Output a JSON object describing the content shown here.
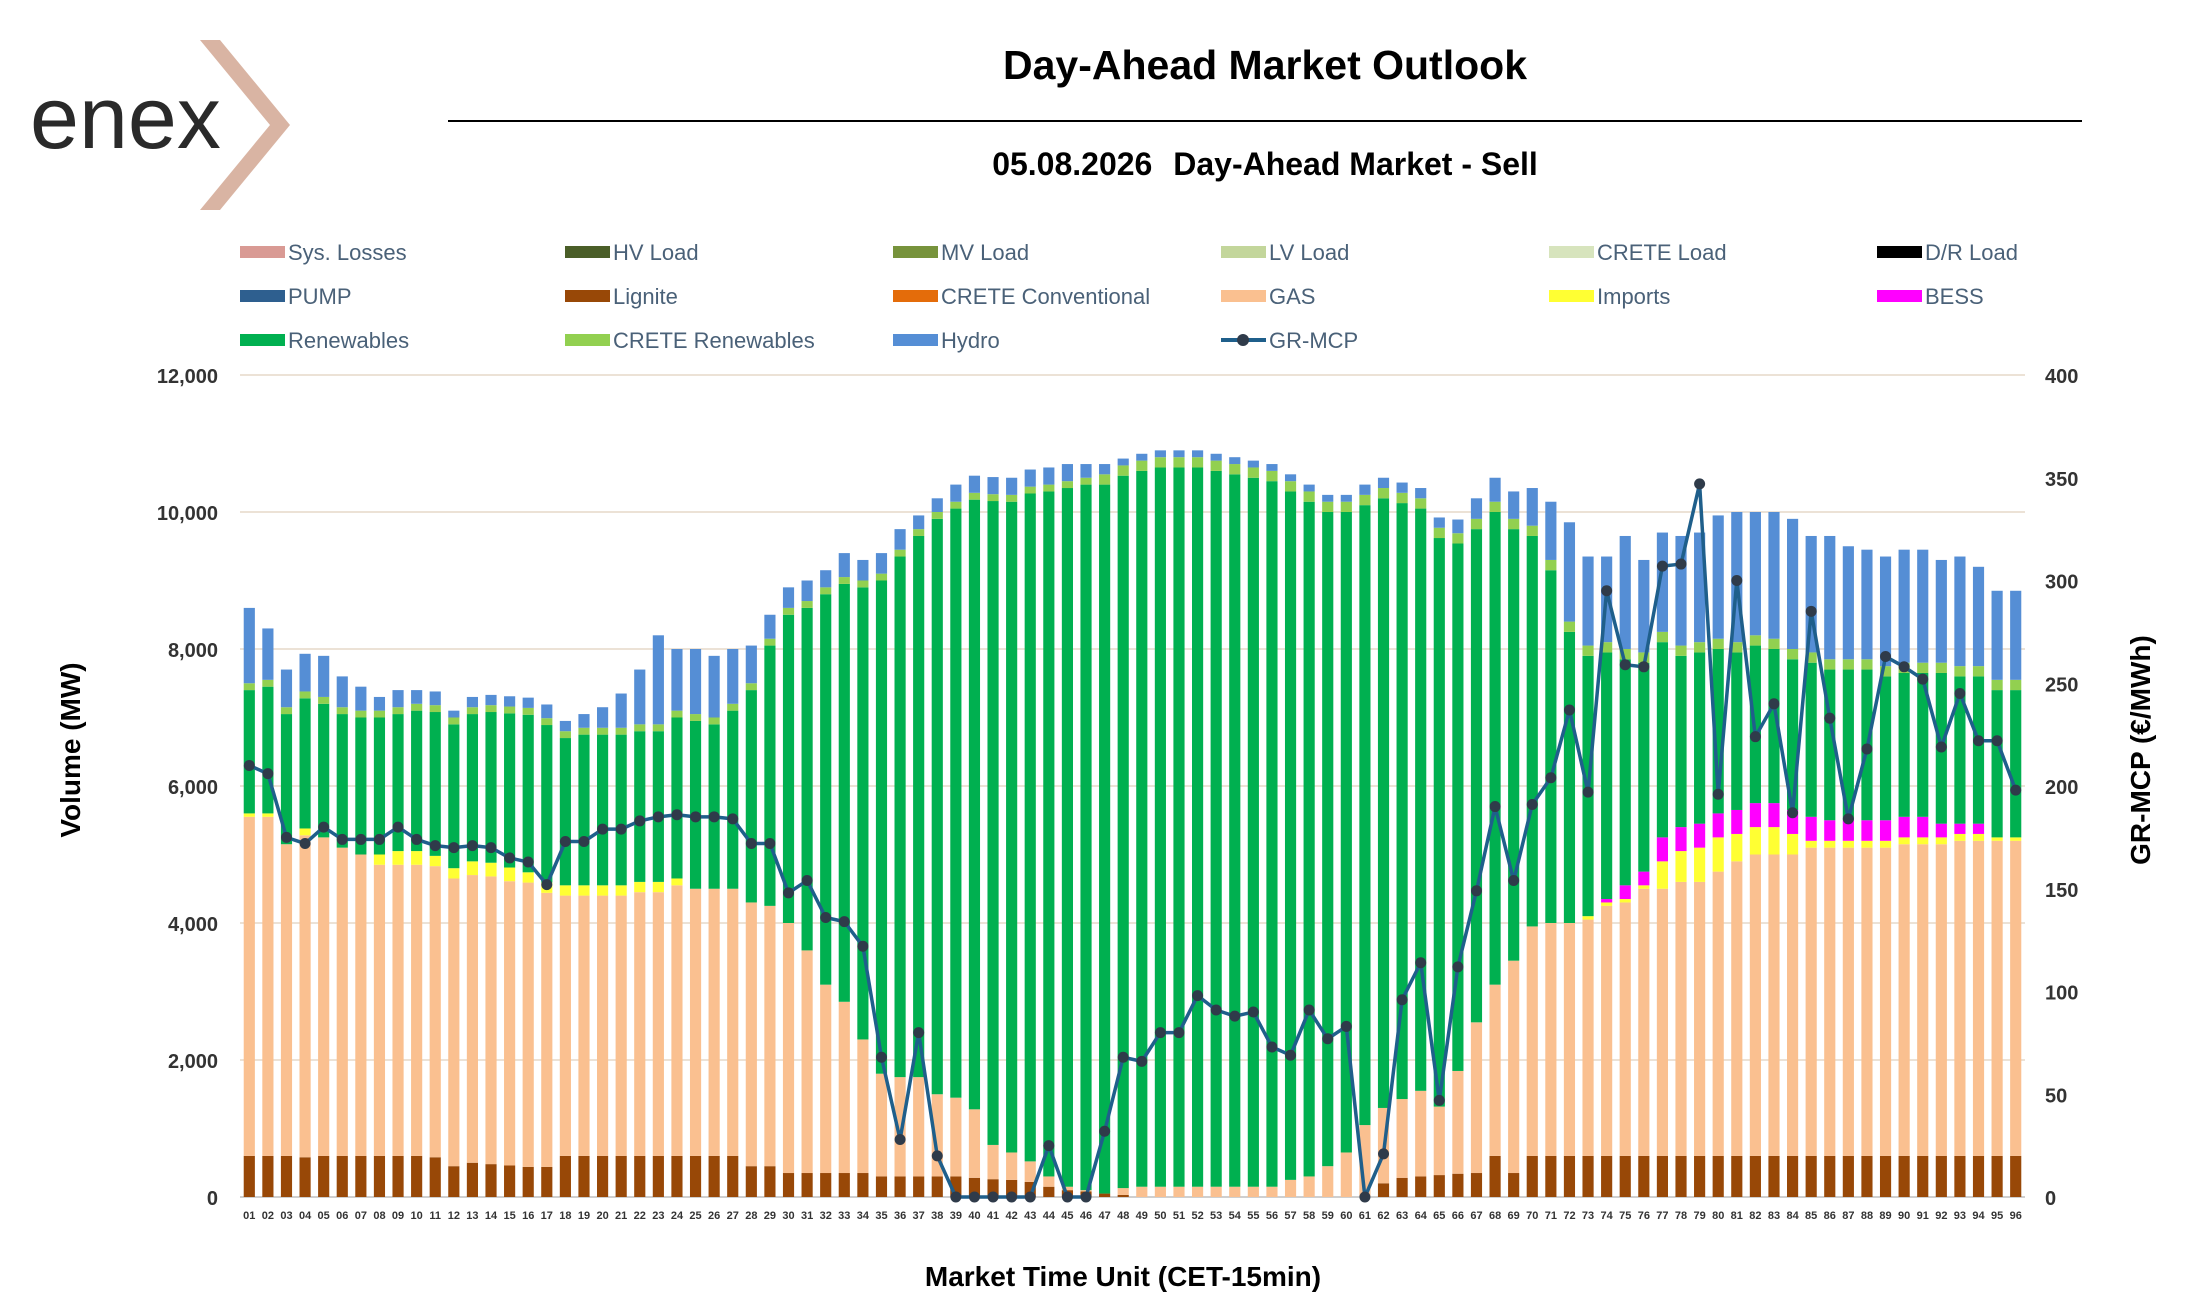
{
  "header": {
    "title": "Day-Ahead Market Outlook",
    "date": "05.08.2026",
    "market": "Day-Ahead Market - Sell"
  },
  "brand": {
    "logo_text": "enex",
    "chevron_color": "#d9b4a3",
    "text_color": "#2a2a2a"
  },
  "chart_data": {
    "type": "bar",
    "stacked": true,
    "xlabel": "Market Time Unit (CET-15min)",
    "ylabel": "Volume (MW)",
    "y2label": "GR-MCP (€/MWh)",
    "ylim": [
      0,
      12000
    ],
    "y2lim": [
      0,
      400
    ],
    "yticks": [
      "0",
      "2,000",
      "4,000",
      "6,000",
      "8,000",
      "10,000",
      "12,000"
    ],
    "y2ticks": [
      "0",
      "50",
      "100",
      "150",
      "200",
      "250",
      "300",
      "350",
      "400"
    ],
    "grid": true,
    "legend_position": "top",
    "legend": [
      {
        "name": "Sys. Losses",
        "color": "#d99a94",
        "type": "bar"
      },
      {
        "name": "HV Load",
        "color": "#4a5e28",
        "type": "bar"
      },
      {
        "name": "MV Load",
        "color": "#77933c",
        "type": "bar"
      },
      {
        "name": "LV Load",
        "color": "#c3d69b",
        "type": "bar"
      },
      {
        "name": "CRETE Load",
        "color": "#d7e4bd",
        "type": "bar"
      },
      {
        "name": "D/R Load",
        "color": "#000000",
        "type": "bar"
      },
      {
        "name": "PUMP",
        "color": "#2e5f8f",
        "type": "bar"
      },
      {
        "name": "Lignite",
        "color": "#984807",
        "type": "bar"
      },
      {
        "name": "CRETE Conventional",
        "color": "#e46c0a",
        "type": "bar"
      },
      {
        "name": "GAS",
        "color": "#fac090",
        "type": "bar"
      },
      {
        "name": "Imports",
        "color": "#ffff33",
        "type": "bar"
      },
      {
        "name": "BESS",
        "color": "#ff00ff",
        "type": "bar"
      },
      {
        "name": "Renewables",
        "color": "#00b050",
        "type": "bar"
      },
      {
        "name": "CRETE Renewables",
        "color": "#92d050",
        "type": "bar"
      },
      {
        "name": "Hydro",
        "color": "#558ed5",
        "type": "bar"
      },
      {
        "name": "GR-MCP",
        "color": "#1f5f8b",
        "type": "line"
      }
    ],
    "categories": [
      "01",
      "02",
      "03",
      "04",
      "05",
      "06",
      "07",
      "08",
      "09",
      "10",
      "11",
      "12",
      "13",
      "14",
      "15",
      "16",
      "17",
      "18",
      "19",
      "20",
      "21",
      "22",
      "23",
      "24",
      "25",
      "26",
      "27",
      "28",
      "29",
      "30",
      "31",
      "32",
      "33",
      "34",
      "35",
      "36",
      "37",
      "38",
      "39",
      "40",
      "41",
      "42",
      "43",
      "44",
      "45",
      "46",
      "47",
      "48",
      "49",
      "50",
      "51",
      "52",
      "53",
      "54",
      "55",
      "56",
      "57",
      "58",
      "59",
      "60",
      "61",
      "62",
      "63",
      "64",
      "65",
      "66",
      "67",
      "68",
      "69",
      "70",
      "71",
      "72",
      "73",
      "74",
      "75",
      "76",
      "77",
      "78",
      "79",
      "80",
      "81",
      "82",
      "83",
      "84",
      "85",
      "86",
      "87",
      "88",
      "89",
      "90",
      "91",
      "92",
      "93",
      "94",
      "95",
      "96"
    ],
    "series": [
      {
        "name": "Lignite",
        "color": "#984807",
        "values": [
          600,
          600,
          600,
          580,
          600,
          600,
          600,
          600,
          600,
          600,
          580,
          450,
          500,
          480,
          460,
          440,
          440,
          600,
          600,
          600,
          600,
          600,
          600,
          600,
          600,
          600,
          600,
          450,
          450,
          350,
          350,
          350,
          350,
          350,
          300,
          300,
          300,
          300,
          300,
          280,
          260,
          250,
          220,
          150,
          100,
          80,
          50,
          30,
          0,
          0,
          0,
          0,
          0,
          0,
          0,
          0,
          0,
          0,
          0,
          0,
          0,
          200,
          280,
          300,
          320,
          340,
          350,
          600,
          350,
          600,
          600,
          600,
          600,
          600,
          600,
          600,
          600,
          600,
          600,
          600,
          600,
          600,
          600,
          600,
          600,
          600,
          600,
          600,
          600,
          600,
          600,
          600,
          600,
          600,
          600,
          600
        ]
      },
      {
        "name": "GAS",
        "color": "#fac090",
        "values": [
          4950,
          4950,
          4550,
          4700,
          4650,
          4500,
          4400,
          4250,
          4250,
          4250,
          4250,
          4200,
          4200,
          4200,
          4150,
          4150,
          4000,
          3800,
          3800,
          3800,
          3800,
          3850,
          3850,
          3950,
          3900,
          3900,
          3900,
          3850,
          3800,
          3650,
          3250,
          2750,
          2500,
          1950,
          1500,
          1450,
          1450,
          1200,
          1150,
          1000,
          500,
          400,
          300,
          150,
          50,
          20,
          0,
          100,
          150,
          150,
          150,
          150,
          150,
          150,
          150,
          150,
          250,
          300,
          450,
          650,
          1050,
          1100,
          1150,
          1250,
          1000,
          1500,
          2200,
          2500,
          3100,
          3350,
          3400,
          3400,
          3450,
          3650,
          3700,
          3900,
          3900,
          4000,
          4000,
          4150,
          4300,
          4400,
          4400,
          4400,
          4500,
          4500,
          4500,
          4500,
          4500,
          4550,
          4550,
          4550,
          4600,
          4600,
          4600,
          4600
        ]
      },
      {
        "name": "Imports",
        "color": "#ffff33",
        "values": [
          50,
          50,
          0,
          100,
          0,
          0,
          0,
          150,
          200,
          200,
          150,
          150,
          200,
          200,
          200,
          150,
          150,
          150,
          150,
          150,
          150,
          150,
          150,
          100,
          0,
          0,
          0,
          0,
          0,
          0,
          0,
          0,
          0,
          0,
          0,
          0,
          0,
          0,
          0,
          0,
          0,
          0,
          0,
          0,
          0,
          0,
          0,
          0,
          0,
          0,
          0,
          0,
          0,
          0,
          0,
          0,
          0,
          0,
          0,
          0,
          0,
          0,
          0,
          0,
          0,
          0,
          0,
          0,
          0,
          0,
          0,
          0,
          50,
          50,
          50,
          50,
          400,
          450,
          500,
          500,
          400,
          400,
          400,
          300,
          100,
          100,
          100,
          100,
          100,
          100,
          100,
          100,
          100,
          100,
          50,
          50
        ]
      },
      {
        "name": "BESS",
        "color": "#ff00ff",
        "values": [
          0,
          0,
          0,
          0,
          0,
          0,
          0,
          0,
          0,
          0,
          0,
          0,
          0,
          0,
          0,
          0,
          0,
          0,
          0,
          0,
          0,
          0,
          0,
          0,
          0,
          0,
          0,
          0,
          0,
          0,
          0,
          0,
          0,
          0,
          0,
          0,
          0,
          0,
          0,
          0,
          0,
          0,
          0,
          0,
          0,
          0,
          0,
          0,
          0,
          0,
          0,
          0,
          0,
          0,
          0,
          0,
          0,
          0,
          0,
          0,
          0,
          0,
          0,
          0,
          0,
          0,
          0,
          0,
          0,
          0,
          0,
          0,
          0,
          50,
          200,
          200,
          350,
          350,
          350,
          350,
          350,
          350,
          350,
          350,
          350,
          300,
          300,
          300,
          300,
          300,
          300,
          200,
          150,
          150,
          0,
          0
        ]
      },
      {
        "name": "Renewables",
        "color": "#00b050",
        "values": [
          1800,
          1850,
          1900,
          1900,
          1950,
          1950,
          2000,
          2000,
          2000,
          2050,
          2100,
          2100,
          2150,
          2200,
          2250,
          2300,
          2300,
          2150,
          2200,
          2200,
          2200,
          2200,
          2200,
          2350,
          2450,
          2400,
          2600,
          3100,
          3800,
          4500,
          5000,
          5700,
          6100,
          6600,
          7200,
          7600,
          7900,
          8400,
          8600,
          8900,
          9400,
          9500,
          9750,
          10000,
          10200,
          10300,
          10350,
          10400,
          10450,
          10500,
          10500,
          10500,
          10450,
          10400,
          10350,
          10300,
          10050,
          9850,
          9550,
          9350,
          9050,
          8900,
          8700,
          8500,
          8300,
          7700,
          7200,
          6900,
          6300,
          5700,
          5150,
          4250,
          3800,
          3600,
          3300,
          3050,
          2850,
          2500,
          2500,
          2400,
          2300,
          2300,
          2250,
          2200,
          2250,
          2200,
          2200,
          2200,
          2100,
          2100,
          2100,
          2200,
          2150,
          2150,
          2150,
          2150
        ]
      },
      {
        "name": "CRETE Renewables",
        "color": "#92d050",
        "values": [
          100,
          100,
          100,
          100,
          100,
          100,
          100,
          100,
          100,
          100,
          100,
          100,
          100,
          100,
          100,
          100,
          100,
          100,
          100,
          100,
          100,
          100,
          100,
          100,
          100,
          100,
          100,
          100,
          100,
          100,
          100,
          100,
          100,
          100,
          100,
          100,
          100,
          100,
          100,
          100,
          100,
          100,
          100,
          100,
          100,
          100,
          150,
          150,
          150,
          150,
          150,
          150,
          150,
          150,
          150,
          150,
          150,
          150,
          150,
          150,
          150,
          150,
          150,
          150,
          150,
          150,
          150,
          150,
          150,
          150,
          150,
          150,
          150,
          150,
          150,
          150,
          150,
          150,
          150,
          150,
          150,
          150,
          150,
          150,
          150,
          150,
          150,
          150,
          150,
          150,
          150,
          150,
          150,
          150,
          150,
          150
        ]
      },
      {
        "name": "Hydro",
        "color": "#558ed5",
        "values": [
          1100,
          750,
          550,
          550,
          600,
          450,
          350,
          200,
          250,
          200,
          200,
          100,
          150,
          150,
          150,
          150,
          200,
          150,
          200,
          300,
          500,
          800,
          1300,
          900,
          950,
          900,
          800,
          550,
          350,
          300,
          300,
          250,
          350,
          300,
          300,
          300,
          200,
          200,
          250,
          250,
          250,
          250,
          250,
          250,
          250,
          200,
          150,
          100,
          100,
          100,
          100,
          100,
          100,
          100,
          100,
          100,
          100,
          100,
          100,
          100,
          150,
          150,
          150,
          150,
          150,
          200,
          300,
          350,
          400,
          550,
          850,
          1450,
          1300,
          1250,
          1650,
          1350,
          1450,
          1600,
          1600,
          1800,
          1900,
          1800,
          1850,
          1900,
          1700,
          1800,
          1650,
          1600,
          1600,
          1650,
          1650,
          1500,
          1600,
          1450,
          1300,
          1300
        ]
      },
      {
        "name": "GR-MCP",
        "color": "#1f5f8b",
        "axis": "y2",
        "values": [
          210,
          206,
          175,
          172,
          180,
          174,
          174,
          174,
          180,
          174,
          171,
          170,
          171,
          170,
          165,
          163,
          152,
          173,
          173,
          179,
          179,
          183,
          185,
          186,
          185,
          185,
          184,
          172,
          172,
          148,
          154,
          136,
          134,
          122,
          68,
          28,
          80,
          20,
          0,
          0,
          0,
          0,
          0,
          25,
          0,
          0,
          32,
          68,
          66,
          80,
          80,
          98,
          91,
          88,
          90,
          73,
          69,
          91,
          77,
          83,
          0,
          21,
          96,
          114,
          47,
          112,
          149,
          190,
          154,
          191,
          204,
          237,
          197,
          295,
          259,
          258,
          307,
          308,
          347,
          196,
          300,
          224,
          240,
          187,
          285,
          233,
          184,
          218,
          263,
          258,
          252,
          219,
          245,
          222,
          222,
          198
        ]
      }
    ]
  }
}
